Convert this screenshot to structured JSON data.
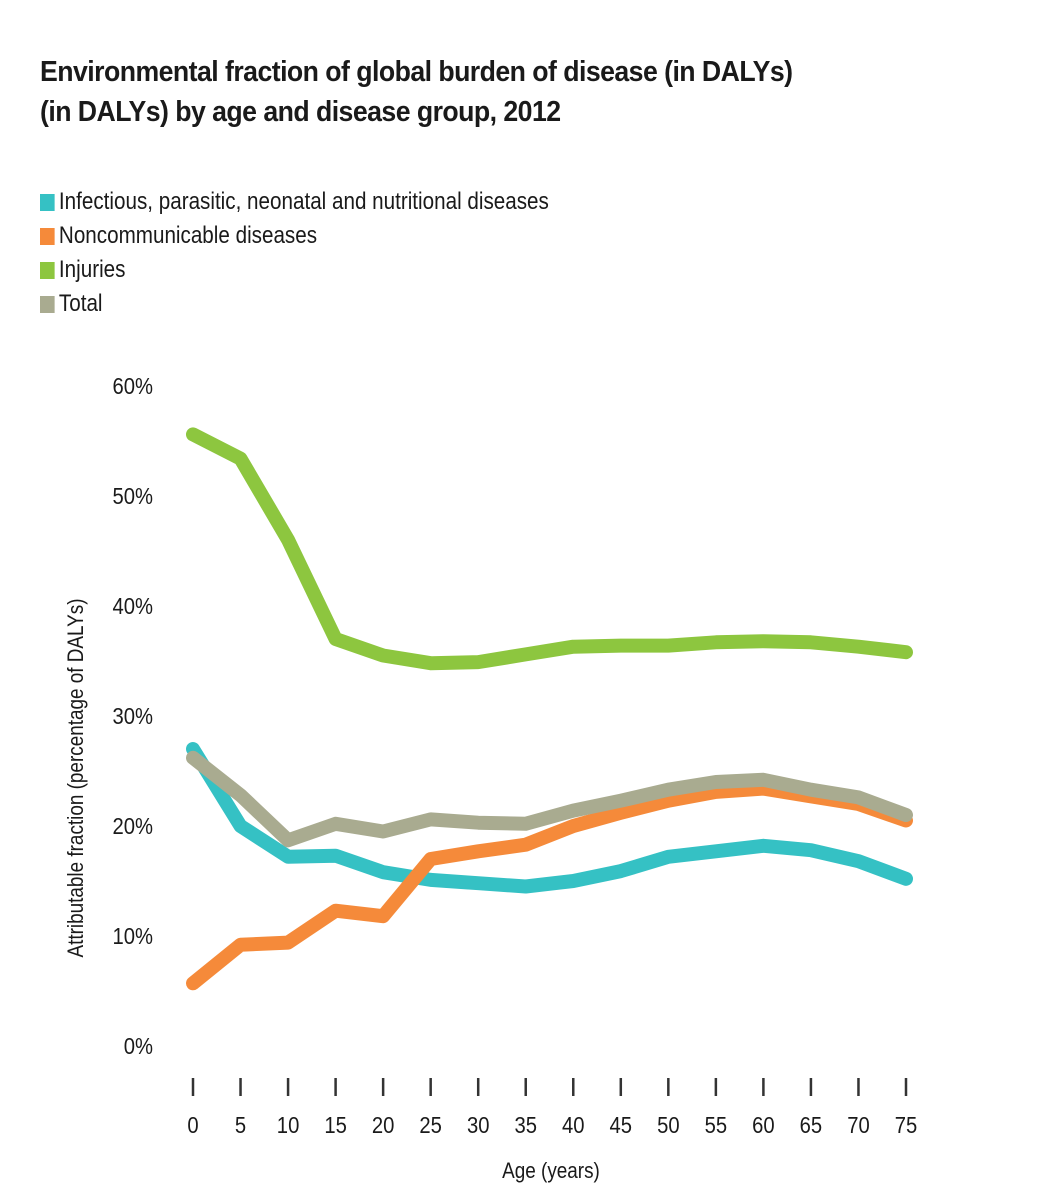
{
  "chart_data": {
    "type": "line",
    "title_line1": "Environmental fraction of global burden of disease (in DALYs)",
    "title_line2": "(in DALYs) by age and disease group, 2012",
    "xlabel": "Age (years)",
    "ylabel": "Attributable fraction (percentage of DALYs)",
    "x": [
      0,
      5,
      10,
      15,
      20,
      25,
      30,
      35,
      40,
      45,
      50,
      55,
      60,
      65,
      70,
      75
    ],
    "x_tick_labels": [
      "0",
      "5",
      "10",
      "15",
      "20",
      "25",
      "30",
      "35",
      "40",
      "45",
      "50",
      "55",
      "60",
      "65",
      "70",
      "75"
    ],
    "y_tick_labels": [
      "0%",
      "10%",
      "20%",
      "30%",
      "40%",
      "50%",
      "60%"
    ],
    "y_ticks": [
      0,
      10,
      20,
      30,
      40,
      50,
      60
    ],
    "ylim": [
      0,
      60
    ],
    "xlim": [
      0,
      75
    ],
    "grid": false,
    "legend_position": "top-left",
    "series": [
      {
        "name": "Infectious, parasitic, neonatal and nutritional diseases",
        "color": "#35c1c4",
        "values": [
          27,
          20,
          17.2,
          17.3,
          15.8,
          15.1,
          14.8,
          14.5,
          15,
          15.9,
          17.2,
          17.7,
          18.2,
          17.8,
          16.8,
          15.2
        ]
      },
      {
        "name": "Noncommunicable diseases",
        "color": "#f58a3a",
        "values": [
          5.7,
          9.2,
          9.4,
          12.3,
          11.8,
          17,
          17.7,
          18.3,
          20,
          21.2,
          22.3,
          23.1,
          23.4,
          22.7,
          22,
          20.5
        ]
      },
      {
        "name": "Injuries",
        "color": "#8dc63f",
        "values": [
          55.6,
          53.4,
          46,
          37,
          35.5,
          34.8,
          34.9,
          35.6,
          36.3,
          36.4,
          36.4,
          36.7,
          36.8,
          36.7,
          36.3,
          35.8
        ]
      },
      {
        "name": "Total",
        "color": "#a9ab90",
        "values": [
          26.2,
          22.8,
          18.7,
          20.2,
          19.5,
          20.6,
          20.3,
          20.2,
          21.4,
          22.3,
          23.3,
          24,
          24.2,
          23.3,
          22.6,
          21
        ]
      }
    ]
  }
}
